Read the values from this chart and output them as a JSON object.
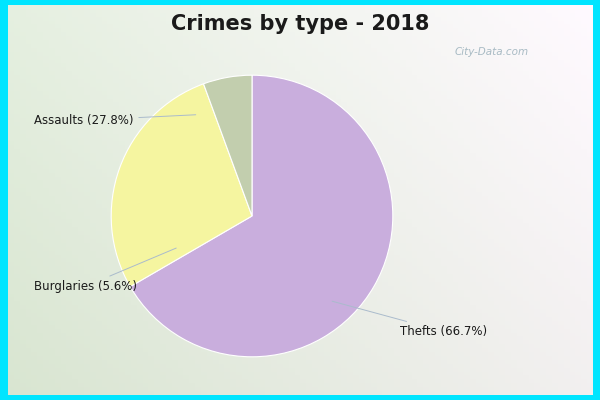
{
  "title": "Crimes by type - 2018",
  "slices": [
    {
      "label": "Thefts (66.7%)",
      "value": 66.7,
      "color": "#c9aedd"
    },
    {
      "label": "Assaults (27.8%)",
      "value": 27.8,
      "color": "#f5f5a0"
    },
    {
      "label": "Burglaries (5.6%)",
      "value": 5.6,
      "color": "#c2ceae"
    }
  ],
  "bg_outer": "#00e5ff",
  "bg_inner_gradient_top": "#e8f4f8",
  "bg_inner_gradient_bot": "#cceedd",
  "title_fontsize": 15,
  "title_color": "#1a1a1a",
  "label_color": "#1a1a1a",
  "label_fontsize": 8.5,
  "watermark": "City-Data.com",
  "border_width": 8
}
